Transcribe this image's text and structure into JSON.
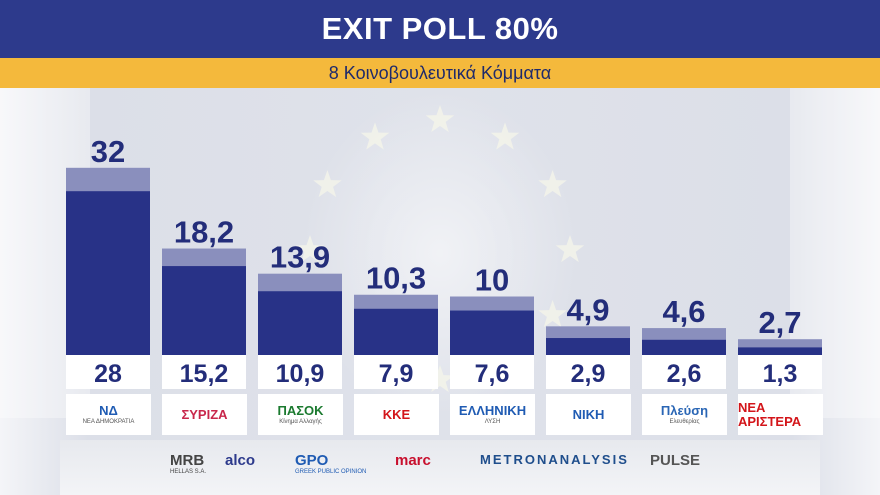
{
  "header": {
    "title": "EXIT POLL 80%",
    "subtitle": "8 Κοινοβουλευτικά Κόμματα"
  },
  "chart_data": {
    "type": "bar",
    "categories": [
      "ΝΔ",
      "ΣΥΡΙΖΑ",
      "ΠΑΣΟΚ",
      "ΚΚΕ",
      "ΕΛΛΗΝΙΚΗ ΛΥΣΗ",
      "ΝΙΚΗ",
      "Πλεύση Ελευθερίας",
      "ΝΕΑ ΑΡΙΣΤΕΡΑ"
    ],
    "series": [
      {
        "values": [
          32,
          18.2,
          13.9,
          10.3,
          10,
          4.9,
          4.6,
          2.7
        ],
        "labels": [
          "32",
          "18,2",
          "13,9",
          "10,3",
          "10",
          "4,9",
          "4,6",
          "2,7"
        ]
      },
      {
        "values": [
          28,
          15.2,
          10.9,
          7.9,
          7.6,
          2.9,
          2.6,
          1.3
        ],
        "labels": [
          "28",
          "15,2",
          "10,9",
          "7,9",
          "7,6",
          "2,9",
          "2,6",
          "1,3"
        ]
      }
    ],
    "xlabel": "",
    "ylabel": "",
    "colors": {
      "current": "#283287",
      "previous_overlay": "#7b82b5",
      "label": "#232d7a"
    }
  },
  "party_logos": [
    {
      "main": "ΝΔ",
      "sub": "ΝΕΑ ΔΗΜΟΚΡΑΤΙΑ",
      "color": "#1f5bb3",
      "icon": "nd-logo"
    },
    {
      "main": "ΣΥΡΙΖΑ",
      "sub": "",
      "color": "#c8274b",
      "icon": "syriza-logo"
    },
    {
      "main": "ΠΑΣΟΚ",
      "sub": "Κίνημα Αλλαγής",
      "color": "#1b7a2f",
      "icon": "pasok-logo"
    },
    {
      "main": "ΚΚΕ",
      "sub": "",
      "color": "#d3151a",
      "icon": "kke-logo"
    },
    {
      "main": "ΕΛΛΗΝΙΚΗ",
      "sub": "ΛΥΣΗ",
      "color": "#1f5bb3",
      "icon": "elliniki-lysi-logo"
    },
    {
      "main": "ΝΙΚΗ",
      "sub": "",
      "color": "#1f5bb3",
      "icon": "niki-logo"
    },
    {
      "main": "Πλεύση",
      "sub": "Ελευθερίας",
      "color": "#2a66b5",
      "icon": "plefsi-logo"
    },
    {
      "main": "ΝΕΑ ΑΡΙΣΤΕΡΑ",
      "sub": "",
      "color": "#d3151a",
      "icon": "nea-aristera-logo"
    }
  ],
  "pollsters": [
    {
      "name": "MRB",
      "sub": "HELLAS S.A.",
      "color": "#444444"
    },
    {
      "name": "alco",
      "sub": "",
      "color": "#2d3a8c"
    },
    {
      "name": "GPO",
      "sub": "GREEK PUBLIC OPINION",
      "color": "#1f5bb3"
    },
    {
      "name": "marc",
      "sub": "",
      "color": "#c8102e"
    },
    {
      "name": "METRONANALYSIS",
      "sub": "",
      "color": "#1f4e8c"
    },
    {
      "name": "PULSE",
      "sub": "",
      "color": "#555555"
    }
  ]
}
